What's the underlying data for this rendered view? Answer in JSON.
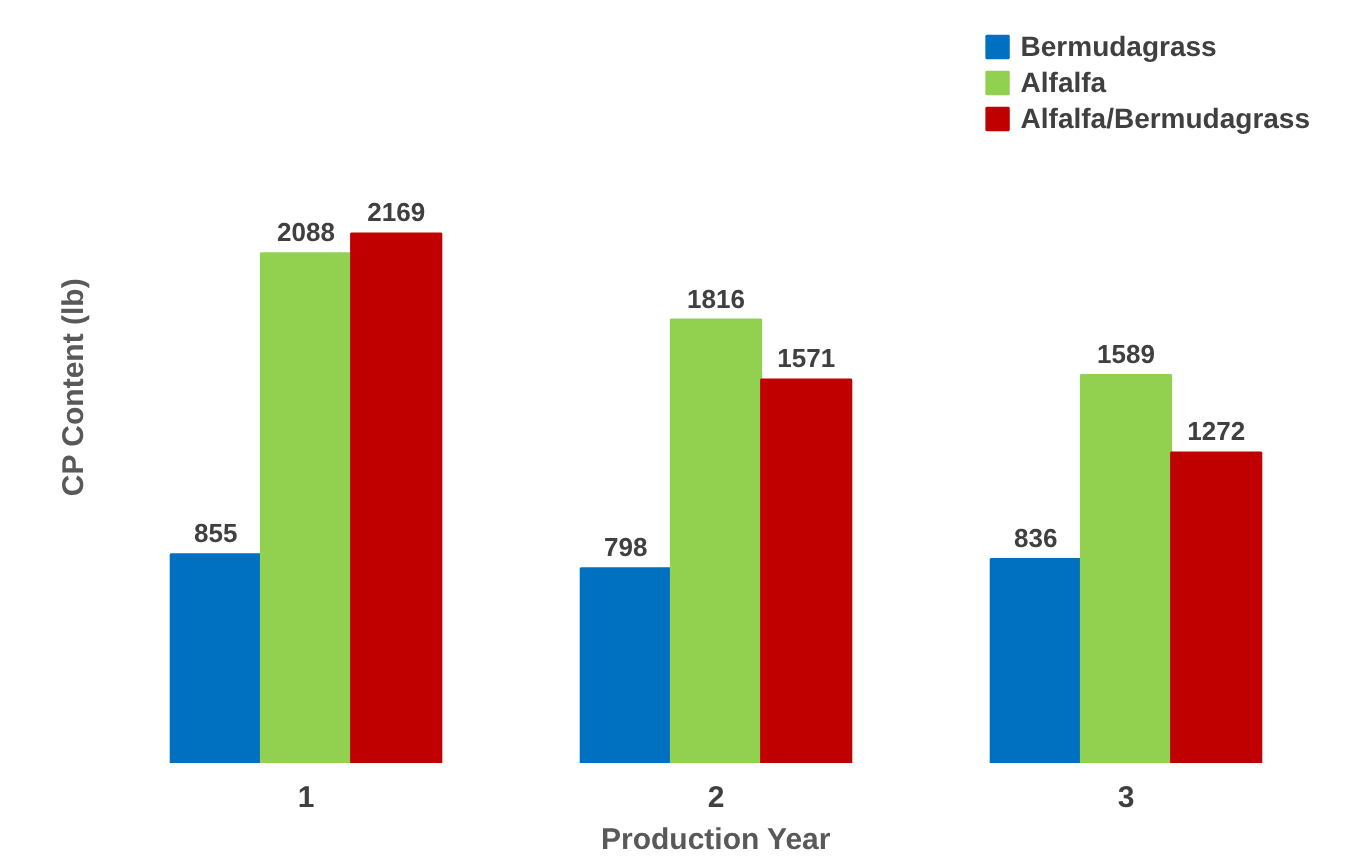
{
  "chart_data": {
    "type": "bar",
    "xlabel": "Production Year",
    "ylabel": "CP Content (lb)",
    "categories": [
      "1",
      "2",
      "3"
    ],
    "series": [
      {
        "name": "Bermudagrass",
        "color": "#0070c0",
        "values": [
          855,
          798,
          836
        ]
      },
      {
        "name": "Alfalfa",
        "color": "#92d050",
        "values": [
          2088,
          1816,
          1589
        ]
      },
      {
        "name": "Alfalfa/Bermudagrass",
        "color": "#c00000",
        "values": [
          2169,
          1571,
          1272
        ]
      }
    ],
    "data_labels": true,
    "legend": "top right",
    "grid": false
  }
}
